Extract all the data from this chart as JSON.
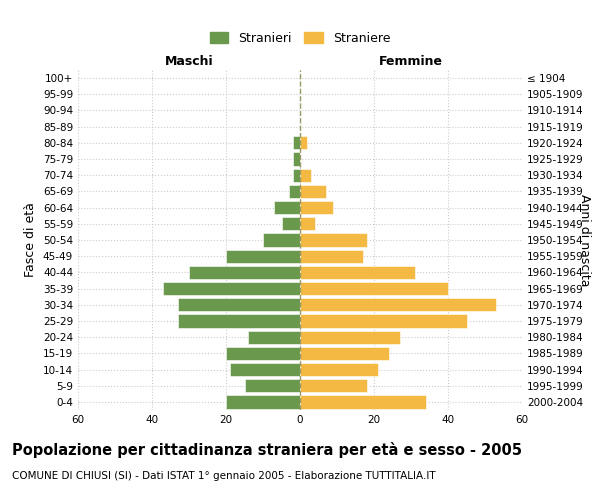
{
  "age_groups": [
    "0-4",
    "5-9",
    "10-14",
    "15-19",
    "20-24",
    "25-29",
    "30-34",
    "35-39",
    "40-44",
    "45-49",
    "50-54",
    "55-59",
    "60-64",
    "65-69",
    "70-74",
    "75-79",
    "80-84",
    "85-89",
    "90-94",
    "95-99",
    "100+"
  ],
  "birth_years": [
    "2000-2004",
    "1995-1999",
    "1990-1994",
    "1985-1989",
    "1980-1984",
    "1975-1979",
    "1970-1974",
    "1965-1969",
    "1960-1964",
    "1955-1959",
    "1950-1954",
    "1945-1949",
    "1940-1944",
    "1935-1939",
    "1930-1934",
    "1925-1929",
    "1920-1924",
    "1915-1919",
    "1910-1914",
    "1905-1909",
    "≤ 1904"
  ],
  "maschi": [
    20,
    15,
    19,
    20,
    14,
    33,
    33,
    37,
    30,
    20,
    10,
    5,
    7,
    3,
    2,
    2,
    2,
    0,
    0,
    0,
    0
  ],
  "femmine": [
    34,
    18,
    21,
    24,
    27,
    45,
    53,
    40,
    31,
    17,
    18,
    4,
    9,
    7,
    3,
    0,
    2,
    0,
    0,
    0,
    0
  ],
  "maschi_color": "#6a994e",
  "femmine_color": "#f4b942",
  "center_line_color": "#999966",
  "grid_color": "#cccccc",
  "background_color": "#ffffff",
  "title": "Popolazione per cittadinanza straniera per età e sesso - 2005",
  "subtitle": "COMUNE DI CHIUSI (SI) - Dati ISTAT 1° gennaio 2005 - Elaborazione TUTTITALIA.IT",
  "xlabel_left": "Maschi",
  "xlabel_right": "Femmine",
  "ylabel_left": "Fasce di età",
  "ylabel_right": "Anni di nascita",
  "legend_maschi": "Stranieri",
  "legend_femmine": "Straniere",
  "xlim": 60,
  "title_fontsize": 10.5,
  "subtitle_fontsize": 7.5,
  "tick_fontsize": 7.5,
  "label_fontsize": 9
}
